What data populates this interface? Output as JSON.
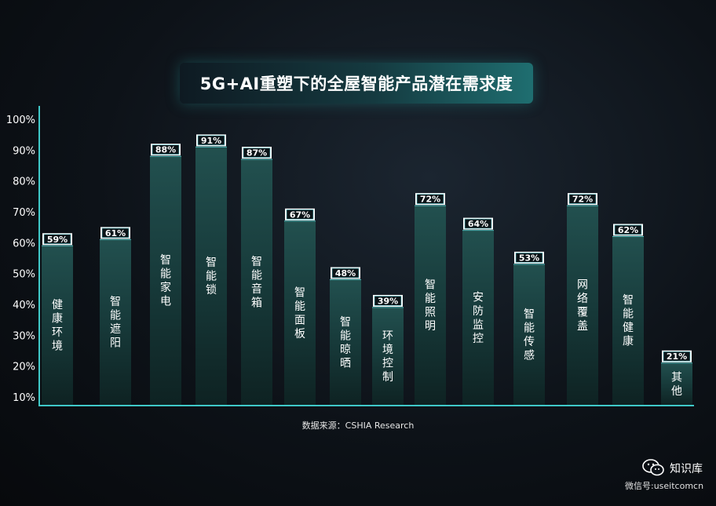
{
  "chart_data": {
    "type": "bar",
    "title": "5G+AI重塑下的全屋智能产品潜在需求度",
    "categories": [
      "健康环境",
      "智能遮阳",
      "智能家电",
      "智能锁",
      "智能音箱",
      "智能面板",
      "智能晾晒",
      "环境控制",
      "智能照明",
      "安防监控",
      "智能传感",
      "网络覆盖",
      "智能健康",
      "其他"
    ],
    "values": [
      59,
      61,
      88,
      91,
      87,
      67,
      48,
      39,
      72,
      64,
      53,
      72,
      62,
      21
    ],
    "value_labels": [
      "59%",
      "61%",
      "88%",
      "91%",
      "87%",
      "67%",
      "48%",
      "39%",
      "72%",
      "64%",
      "53%",
      "72%",
      "62%",
      "21%"
    ],
    "yticks": [
      "10%",
      "20%",
      "30%",
      "40%",
      "50%",
      "60%",
      "70%",
      "80%",
      "90%",
      "100%"
    ],
    "ylim": [
      10,
      100
    ],
    "xlabel": "",
    "ylabel": "",
    "grid": false,
    "colors": {
      "bar_top": "#1f4a4a",
      "bar_bottom": "#0f2626",
      "axis": "#3fc8c8",
      "label_border": "#6fd9e0"
    }
  },
  "source": "数据来源：CSHIA Research",
  "watermark": {
    "icon": "wechat-icon",
    "name": "知识库",
    "id": "微信号:useitcomcn"
  }
}
